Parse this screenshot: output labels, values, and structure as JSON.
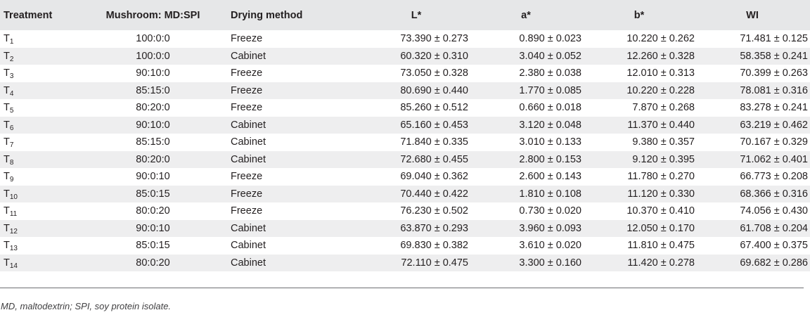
{
  "columns": [
    "Treatment",
    "Mushroom: MD:SPI",
    "Drying method",
    "L*",
    "a*",
    "b*",
    "WI"
  ],
  "rows": [
    {
      "t_base": "T",
      "t_sub": "1",
      "ratio": "100:0:0",
      "method": "Freeze",
      "L": "73.390 ± 0.273",
      "a": "0.890 ± 0.023",
      "b": "10.220 ± 0.262",
      "WI": "71.481 ± 0.125"
    },
    {
      "t_base": "T",
      "t_sub": "2",
      "ratio": "100:0:0",
      "method": "Cabinet",
      "L": "60.320 ± 0.310",
      "a": "3.040 ± 0.052",
      "b": "12.260 ± 0.328",
      "WI": "58.358 ± 0.241"
    },
    {
      "t_base": "T",
      "t_sub": "3",
      "ratio": "90:10:0",
      "method": "Freeze",
      "L": "73.050 ± 0.328",
      "a": "2.380 ± 0.038",
      "b": "12.010 ± 0.313",
      "WI": "70.399 ± 0.263"
    },
    {
      "t_base": "T",
      "t_sub": "4",
      "ratio": "85:15:0",
      "method": "Freeze",
      "L": "80.690 ± 0.440",
      "a": "1.770 ± 0.085",
      "b": "10.220 ± 0.228",
      "WI": "78.081 ± 0.316"
    },
    {
      "t_base": "T",
      "t_sub": "5",
      "ratio": "80:20:0",
      "method": "Freeze",
      "L": "85.260 ± 0.512",
      "a": "0.660 ± 0.018",
      "b": "7.870 ± 0.268",
      "WI": "83.278 ± 0.241"
    },
    {
      "t_base": "T",
      "t_sub": "6",
      "ratio": "90:10:0",
      "method": "Cabinet",
      "L": "65.160 ± 0.453",
      "a": "3.120 ± 0.048",
      "b": "11.370 ± 0.440",
      "WI": "63.219 ± 0.462"
    },
    {
      "t_base": "T",
      "t_sub": "7",
      "ratio": "85:15:0",
      "method": "Cabinet",
      "L": "71.840 ± 0.335",
      "a": "3.010 ± 0.133",
      "b": "9.380 ± 0.357",
      "WI": "70.167 ± 0.329"
    },
    {
      "t_base": "T",
      "t_sub": "8",
      "ratio": "80:20:0",
      "method": "Cabinet",
      "L": "72.680 ± 0.455",
      "a": "2.800 ± 0.153",
      "b": "9.120 ± 0.395",
      "WI": "71.062 ± 0.401"
    },
    {
      "t_base": "T",
      "t_sub": "9",
      "ratio": "90:0:10",
      "method": "Freeze",
      "L": "69.040 ± 0.362",
      "a": "2.600 ± 0.143",
      "b": "11.780 ± 0.270",
      "WI": "66.773 ± 0.208"
    },
    {
      "t_base": "T",
      "t_sub": "10",
      "ratio": "85:0:15",
      "method": "Freeze",
      "L": "70.440 ± 0.422",
      "a": "1.810 ± 0.108",
      "b": "11.120 ± 0.330",
      "WI": "68.366 ± 0.316"
    },
    {
      "t_base": "T",
      "t_sub": "11",
      "ratio": "80:0:20",
      "method": "Freeze",
      "L": "76.230 ± 0.502",
      "a": "0.730 ± 0.020",
      "b": "10.370 ± 0.410",
      "WI": "74.056 ± 0.430"
    },
    {
      "t_base": "T",
      "t_sub": "12",
      "ratio": "90:0:10",
      "method": "Cabinet",
      "L": "63.870 ± 0.293",
      "a": "3.960 ± 0.093",
      "b": "12.050 ± 0.170",
      "WI": "61.708 ± 0.204"
    },
    {
      "t_base": "T",
      "t_sub": "13",
      "ratio": "85:0:15",
      "method": "Cabinet",
      "L": "69.830 ± 0.382",
      "a": "3.610 ± 0.020",
      "b": "11.810 ± 0.475",
      "WI": "67.400 ± 0.375"
    },
    {
      "t_base": "T",
      "t_sub": "14",
      "ratio": "80:0:20",
      "method": "Cabinet",
      "L": "72.110 ± 0.475",
      "a": "3.300 ± 0.160",
      "b": "11.420 ± 0.278",
      "WI": "69.682 ± 0.286"
    }
  ],
  "footnote": "MD, maltodextrin; SPI, soy protein isolate.",
  "colors": {
    "header_bg": "#e6e7e8",
    "stripe_bg": "#eeeeef",
    "text": "#231f20"
  }
}
